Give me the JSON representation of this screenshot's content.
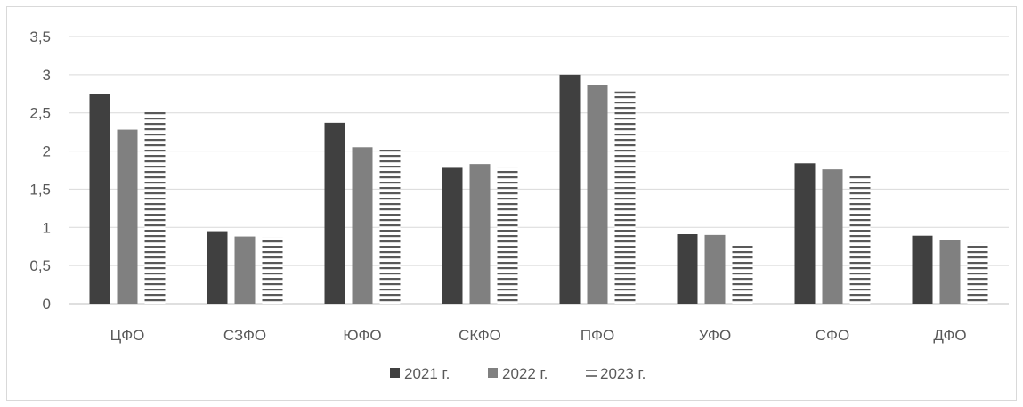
{
  "chart_data": {
    "type": "bar",
    "categories": [
      "ЦФО",
      "СЗФО",
      "ЮФО",
      "СКФО",
      "ПФО",
      "УФО",
      "СФО",
      "ДФО"
    ],
    "series": [
      {
        "name": "2021 г.",
        "values": [
          2.75,
          0.95,
          2.37,
          1.78,
          3.0,
          0.91,
          1.84,
          0.89
        ],
        "color": "#404040",
        "pattern": "solid"
      },
      {
        "name": "2022 г.",
        "values": [
          2.28,
          0.88,
          2.05,
          1.83,
          2.86,
          0.9,
          1.76,
          0.84
        ],
        "color": "#808080",
        "pattern": "solid"
      },
      {
        "name": "2023 г.",
        "values": [
          2.51,
          0.87,
          2.03,
          1.78,
          2.78,
          0.79,
          1.69,
          0.8
        ],
        "color": "#595959",
        "pattern": "horizontal-stripes"
      }
    ],
    "yticks": [
      "0",
      "0,5",
      "1",
      "1,5",
      "2",
      "2,5",
      "3",
      "3,5"
    ],
    "ylim": [
      0,
      3.5
    ],
    "grid": true,
    "legend_position": "bottom",
    "title": "",
    "xlabel": "",
    "ylabel": ""
  }
}
